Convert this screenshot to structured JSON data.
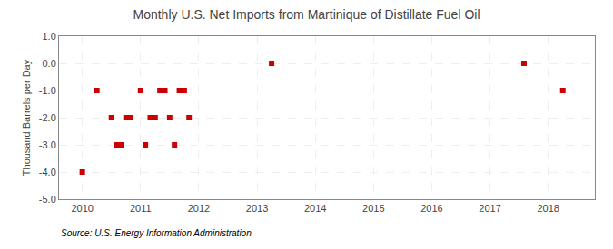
{
  "chart_data": {
    "type": "scatter",
    "title": "Monthly U.S. Net Imports from Martinique of Distillate Fuel Oil",
    "ylabel": "Thousand Barrels per Day",
    "annotations": [
      "Source: U.S. Energy Information Administration"
    ],
    "x": [
      2010.0,
      2010.25,
      2010.5,
      2010.583,
      2010.667,
      2010.75,
      2010.833,
      2011.0,
      2011.083,
      2011.167,
      2011.25,
      2011.333,
      2011.417,
      2011.5,
      2011.583,
      2011.667,
      2011.75,
      2011.833,
      2013.25,
      2017.583,
      2018.25
    ],
    "values": [
      -4.0,
      -1.0,
      -2.0,
      -3.0,
      -3.0,
      -2.0,
      -2.0,
      -1.0,
      -3.0,
      -2.0,
      -2.0,
      -1.0,
      -1.0,
      -2.0,
      -3.0,
      -1.0,
      -1.0,
      -2.0,
      0.0,
      0.0,
      -1.0
    ],
    "color": "#cc0000",
    "marker": "square",
    "xlim": [
      2009.6,
      2018.8
    ],
    "xticks": [
      2010,
      2011,
      2012,
      2013,
      2014,
      2015,
      2016,
      2017,
      2018
    ],
    "ylim": [
      -5.0,
      1.0
    ],
    "yticks": [
      {
        "value": 1.0,
        "label": "1.0"
      },
      {
        "value": 0.0,
        "label": "0.0"
      },
      {
        "value": -1.0,
        "label": "-1.0"
      },
      {
        "value": -2.0,
        "label": "-2.0"
      },
      {
        "value": -3.0,
        "label": "-3.0"
      },
      {
        "value": -4.0,
        "label": "-4.0"
      },
      {
        "value": -5.0,
        "label": "-5.0"
      }
    ],
    "grid": true
  }
}
